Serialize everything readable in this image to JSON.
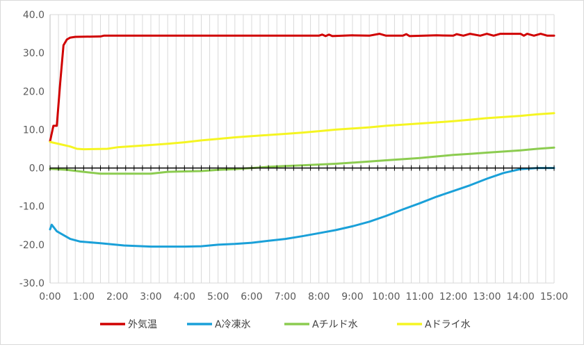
{
  "chart_data": {
    "type": "line",
    "title": "",
    "xlabel": "",
    "ylabel": "",
    "xlim": [
      0,
      15
    ],
    "ylim": [
      -30,
      40
    ],
    "x_ticks": [
      {
        "value": 0,
        "label": "0:00"
      },
      {
        "value": 1,
        "label": "1:00"
      },
      {
        "value": 2,
        "label": "2:00"
      },
      {
        "value": 3,
        "label": "3:00"
      },
      {
        "value": 4,
        "label": "4:00"
      },
      {
        "value": 5,
        "label": "5:00"
      },
      {
        "value": 6,
        "label": "6:00"
      },
      {
        "value": 7,
        "label": "7:00"
      },
      {
        "value": 8,
        "label": "8:00"
      },
      {
        "value": 9,
        "label": "9:00"
      },
      {
        "value": 10,
        "label": "10:00"
      },
      {
        "value": 11,
        "label": "11:00"
      },
      {
        "value": 12,
        "label": "12:00"
      },
      {
        "value": 13,
        "label": "13:00"
      },
      {
        "value": 14,
        "label": "14:00"
      },
      {
        "value": 15,
        "label": "15:00"
      }
    ],
    "y_ticks": [
      {
        "value": 40,
        "label": "40.0"
      },
      {
        "value": 30,
        "label": "30.0"
      },
      {
        "value": 20,
        "label": "20.0"
      },
      {
        "value": 10,
        "label": "10.0"
      },
      {
        "value": 0,
        "label": "0.0"
      },
      {
        "value": -10,
        "label": "-10.0"
      },
      {
        "value": -20,
        "label": "-20.0"
      },
      {
        "value": -30,
        "label": "-30.0"
      }
    ],
    "grid": {
      "vertical": true,
      "horizontal": false,
      "vertical_minor_per_hour": 4
    },
    "legend_position": "bottom",
    "series": [
      {
        "name": "外気温",
        "color": "#d00000",
        "points": [
          [
            0,
            7
          ],
          [
            0.1,
            11
          ],
          [
            0.2,
            11
          ],
          [
            0.3,
            22
          ],
          [
            0.4,
            32
          ],
          [
            0.5,
            33.5
          ],
          [
            0.6,
            34
          ],
          [
            0.75,
            34.2
          ],
          [
            1.5,
            34.3
          ],
          [
            1.6,
            34.5
          ],
          [
            8,
            34.5
          ],
          [
            8.1,
            34.8
          ],
          [
            8.2,
            34.4
          ],
          [
            8.3,
            34.8
          ],
          [
            8.4,
            34.4
          ],
          [
            9.0,
            34.6
          ],
          [
            9.5,
            34.5
          ],
          [
            9.8,
            35
          ],
          [
            10.0,
            34.5
          ],
          [
            10.5,
            34.5
          ],
          [
            10.6,
            34.9
          ],
          [
            10.7,
            34.4
          ],
          [
            11.5,
            34.6
          ],
          [
            12.0,
            34.5
          ],
          [
            12.1,
            34.9
          ],
          [
            12.3,
            34.5
          ],
          [
            12.5,
            35
          ],
          [
            12.8,
            34.5
          ],
          [
            13.0,
            35
          ],
          [
            13.2,
            34.5
          ],
          [
            13.4,
            35
          ],
          [
            14.0,
            35
          ],
          [
            14.1,
            34.5
          ],
          [
            14.2,
            35
          ],
          [
            14.4,
            34.5
          ],
          [
            14.6,
            35
          ],
          [
            14.8,
            34.5
          ],
          [
            15,
            34.5
          ]
        ]
      },
      {
        "name": "A冷凍氷",
        "color": "#1aa0d8",
        "points": [
          [
            0,
            -16
          ],
          [
            0.05,
            -14.8
          ],
          [
            0.2,
            -16.5
          ],
          [
            0.4,
            -17.5
          ],
          [
            0.6,
            -18.5
          ],
          [
            0.9,
            -19.2
          ],
          [
            1.5,
            -19.6
          ],
          [
            2.2,
            -20.2
          ],
          [
            3,
            -20.5
          ],
          [
            4,
            -20.5
          ],
          [
            4.5,
            -20.4
          ],
          [
            5,
            -20
          ],
          [
            5.5,
            -19.8
          ],
          [
            6,
            -19.5
          ],
          [
            6.5,
            -19
          ],
          [
            7,
            -18.5
          ],
          [
            7.5,
            -17.8
          ],
          [
            8,
            -17
          ],
          [
            8.5,
            -16.2
          ],
          [
            9,
            -15.2
          ],
          [
            9.5,
            -14
          ],
          [
            10,
            -12.5
          ],
          [
            10.5,
            -10.8
          ],
          [
            11,
            -9.2
          ],
          [
            11.5,
            -7.5
          ],
          [
            12,
            -6
          ],
          [
            12.5,
            -4.5
          ],
          [
            13,
            -2.8
          ],
          [
            13.5,
            -1.3
          ],
          [
            14,
            -0.3
          ],
          [
            14.5,
            0
          ],
          [
            15,
            0
          ]
        ]
      },
      {
        "name": "Aチルド水",
        "color": "#8ccc50",
        "points": [
          [
            0,
            -0.2
          ],
          [
            0.5,
            -0.5
          ],
          [
            1,
            -1
          ],
          [
            1.5,
            -1.5
          ],
          [
            3,
            -1.5
          ],
          [
            3.5,
            -1
          ],
          [
            4.5,
            -0.8
          ],
          [
            5,
            -0.5
          ],
          [
            5.5,
            -0.3
          ],
          [
            6,
            0
          ],
          [
            6.5,
            0.3
          ],
          [
            7,
            0.5
          ],
          [
            7.5,
            0.7
          ],
          [
            8,
            0.9
          ],
          [
            8.5,
            1.1
          ],
          [
            9,
            1.4
          ],
          [
            9.5,
            1.7
          ],
          [
            10,
            2
          ],
          [
            10.5,
            2.3
          ],
          [
            11,
            2.6
          ],
          [
            11.5,
            3
          ],
          [
            12,
            3.4
          ],
          [
            12.5,
            3.7
          ],
          [
            13,
            4
          ],
          [
            13.5,
            4.3
          ],
          [
            14,
            4.6
          ],
          [
            14.5,
            5
          ],
          [
            15,
            5.3
          ]
        ]
      },
      {
        "name": "Aドライ水",
        "color": "#f5f522",
        "points": [
          [
            0,
            6.8
          ],
          [
            0.3,
            6.2
          ],
          [
            0.6,
            5.6
          ],
          [
            0.8,
            5
          ],
          [
            1,
            4.9
          ],
          [
            1.7,
            5
          ],
          [
            2,
            5.4
          ],
          [
            2.5,
            5.7
          ],
          [
            3,
            6
          ],
          [
            3.5,
            6.3
          ],
          [
            4,
            6.7
          ],
          [
            4.5,
            7.2
          ],
          [
            5,
            7.6
          ],
          [
            5.5,
            8
          ],
          [
            6,
            8.3
          ],
          [
            6.5,
            8.6
          ],
          [
            7,
            8.9
          ],
          [
            7.5,
            9.2
          ],
          [
            8,
            9.6
          ],
          [
            8.5,
            10
          ],
          [
            9,
            10.3
          ],
          [
            9.5,
            10.6
          ],
          [
            10,
            11
          ],
          [
            10.5,
            11.3
          ],
          [
            11,
            11.6
          ],
          [
            11.5,
            11.9
          ],
          [
            12,
            12.2
          ],
          [
            12.5,
            12.6
          ],
          [
            13,
            13
          ],
          [
            13.5,
            13.3
          ],
          [
            14,
            13.6
          ],
          [
            14.5,
            14
          ],
          [
            15,
            14.3
          ]
        ]
      }
    ]
  }
}
